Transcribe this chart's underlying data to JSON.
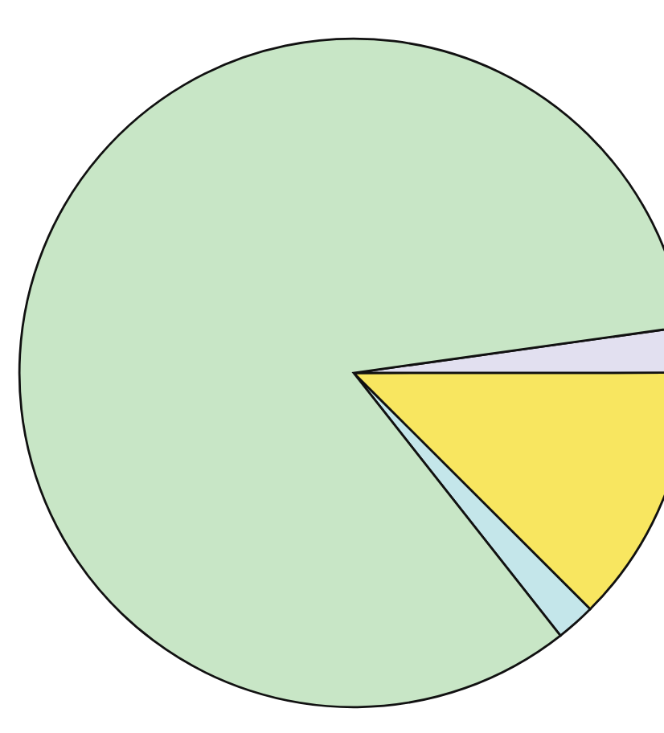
{
  "chart_data": {
    "type": "pie",
    "categories": [
      null,
      null,
      null,
      null
    ],
    "values": [
      1.9,
      12.5,
      2.2,
      83.4
    ],
    "colors": [
      "#c4e6ea",
      "#f8e660",
      "#e2e0f0",
      "#c8e6c6"
    ]
  }
}
